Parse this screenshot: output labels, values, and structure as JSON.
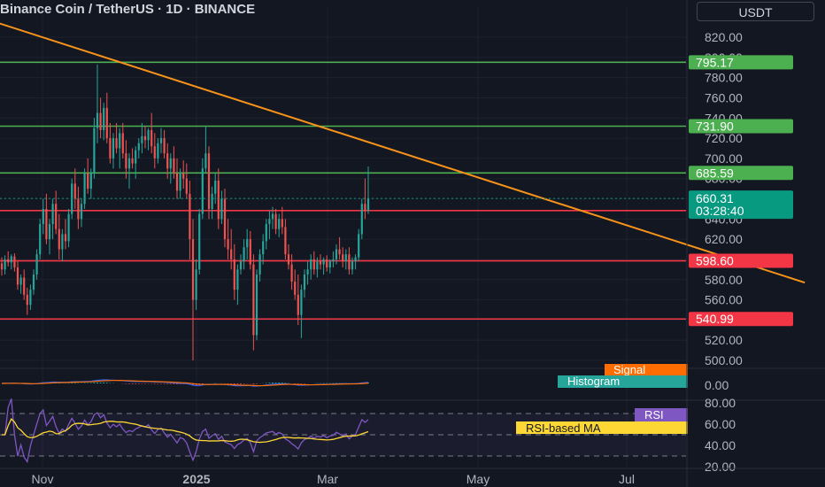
{
  "title": "Binance Coin / TetherUS · 1D · BINANCE",
  "currency_button": "USDT",
  "colors": {
    "background": "#131722",
    "bull": "#26a69a",
    "bear": "#ef5350",
    "support_resistance_red": "#f23645",
    "resistance_green": "#4caf50",
    "trendline": "#f7931a",
    "macd_line": "#2962ff",
    "macd_signal": "#ff6d00",
    "rsi_line": "#7e57c2",
    "rsi_ma": "#fdd835",
    "current_price": "#089981"
  },
  "chart_data": [
    {
      "type": "candlestick",
      "name": "price",
      "y_axis_ticks": [
        "820.00",
        "800.00",
        "780.00",
        "760.00",
        "740.00",
        "720.00",
        "700.00",
        "680.00",
        "660.00",
        "640.00",
        "620.00",
        "600.00",
        "580.00",
        "560.00",
        "540.00",
        "520.00",
        "500.00"
      ],
      "ylim": [
        495,
        830
      ],
      "x_axis_labels": [
        "Nov",
        "2025",
        "Mar",
        "May",
        "Jul"
      ],
      "horizontal_levels": [
        {
          "value": 795.17,
          "label": "795.17",
          "color": "green"
        },
        {
          "value": 731.9,
          "label": "731.90",
          "color": "green"
        },
        {
          "value": 685.59,
          "label": "685.59",
          "color": "green"
        },
        {
          "value": 648.31,
          "label": "648.31",
          "color": "red"
        },
        {
          "value": 598.6,
          "label": "598.60",
          "color": "red"
        },
        {
          "value": 540.99,
          "label": "540.99",
          "color": "red"
        }
      ],
      "trendline": {
        "start": {
          "bar": -5,
          "price": 838
        },
        "end": {
          "bar": 252,
          "price": 577
        }
      },
      "current_price": {
        "value": 660.31,
        "label": "660.31",
        "countdown": "03:28:40"
      },
      "candles": [
        [
          596,
          602,
          584,
          590
        ],
        [
          590,
          604,
          585,
          600
        ],
        [
          600,
          608,
          593,
          597
        ],
        [
          597,
          605,
          590,
          603
        ],
        [
          603,
          606,
          588,
          592
        ],
        [
          592,
          598,
          570,
          575
        ],
        [
          575,
          585,
          566,
          582
        ],
        [
          582,
          590,
          560,
          565
        ],
        [
          565,
          572,
          545,
          555
        ],
        [
          555,
          575,
          550,
          570
        ],
        [
          570,
          590,
          565,
          585
        ],
        [
          585,
          610,
          580,
          605
        ],
        [
          605,
          640,
          600,
          635
        ],
        [
          635,
          660,
          625,
          650
        ],
        [
          650,
          665,
          615,
          620
        ],
        [
          620,
          640,
          605,
          635
        ],
        [
          635,
          660,
          620,
          655
        ],
        [
          655,
          668,
          625,
          630
        ],
        [
          630,
          645,
          600,
          610
        ],
        [
          610,
          630,
          598,
          625
        ],
        [
          625,
          640,
          610,
          618
        ],
        [
          618,
          650,
          612,
          645
        ],
        [
          645,
          680,
          640,
          675
        ],
        [
          675,
          690,
          650,
          660
        ],
        [
          660,
          672,
          630,
          640
        ],
        [
          640,
          660,
          632,
          655
        ],
        [
          655,
          690,
          650,
          685
        ],
        [
          685,
          700,
          665,
          670
        ],
        [
          670,
          690,
          660,
          685
        ],
        [
          685,
          740,
          680,
          730
        ],
        [
          730,
          793,
          715,
          745
        ],
        [
          745,
          760,
          720,
          728
        ],
        [
          728,
          755,
          718,
          750
        ],
        [
          750,
          765,
          715,
          720
        ],
        [
          720,
          735,
          695,
          700
        ],
        [
          700,
          725,
          690,
          720
        ],
        [
          720,
          735,
          705,
          710
        ],
        [
          710,
          730,
          690,
          725
        ],
        [
          725,
          735,
          700,
          705
        ],
        [
          705,
          718,
          680,
          690
        ],
        [
          690,
          705,
          670,
          700
        ],
        [
          700,
          710,
          690,
          695
        ],
        [
          695,
          712,
          680,
          708
        ],
        [
          708,
          720,
          700,
          715
        ],
        [
          715,
          735,
          705,
          722
        ],
        [
          722,
          732,
          710,
          718
        ],
        [
          718,
          730,
          708,
          728
        ],
        [
          728,
          745,
          705,
          712
        ],
        [
          712,
          725,
          690,
          700
        ],
        [
          700,
          720,
          695,
          715
        ],
        [
          715,
          730,
          705,
          720
        ],
        [
          720,
          728,
          700,
          705
        ],
        [
          705,
          715,
          680,
          690
        ],
        [
          690,
          705,
          675,
          700
        ],
        [
          700,
          712,
          680,
          685
        ],
        [
          685,
          700,
          660,
          668
        ],
        [
          668,
          690,
          660,
          685
        ],
        [
          685,
          698,
          670,
          680
        ],
        [
          680,
          695,
          660,
          665
        ],
        [
          665,
          678,
          600,
          620
        ],
        [
          620,
          640,
          500,
          560
        ],
        [
          560,
          600,
          550,
          590
        ],
        [
          590,
          650,
          585,
          645
        ],
        [
          645,
          700,
          640,
          690
        ],
        [
          690,
          732,
          685,
          705
        ],
        [
          705,
          712,
          640,
          650
        ],
        [
          650,
          672,
          640,
          665
        ],
        [
          665,
          685,
          655,
          678
        ],
        [
          678,
          690,
          630,
          640
        ],
        [
          640,
          668,
          635,
          660
        ],
        [
          660,
          670,
          612,
          620
        ],
        [
          620,
          640,
          600,
          610
        ],
        [
          610,
          630,
          590,
          600
        ],
        [
          600,
          615,
          560,
          570
        ],
        [
          570,
          595,
          555,
          590
        ],
        [
          590,
          605,
          585,
          598
        ],
        [
          598,
          620,
          590,
          612
        ],
        [
          612,
          630,
          600,
          620
        ],
        [
          620,
          628,
          590,
          595
        ],
        [
          595,
          605,
          510,
          525
        ],
        [
          525,
          590,
          520,
          585
        ],
        [
          585,
          610,
          578,
          605
        ],
        [
          605,
          625,
          595,
          618
        ],
        [
          618,
          640,
          610,
          635
        ],
        [
          635,
          648,
          620,
          640
        ],
        [
          640,
          652,
          630,
          645
        ],
        [
          645,
          650,
          625,
          630
        ],
        [
          630,
          645,
          622,
          640
        ],
        [
          640,
          652,
          625,
          632
        ],
        [
          632,
          640,
          600,
          605
        ],
        [
          605,
          615,
          590,
          595
        ],
        [
          595,
          605,
          570,
          578
        ],
        [
          578,
          590,
          560,
          565
        ],
        [
          565,
          585,
          535,
          545
        ],
        [
          545,
          575,
          522,
          570
        ],
        [
          570,
          590,
          562,
          585
        ],
        [
          585,
          598,
          575,
          590
        ],
        [
          590,
          605,
          580,
          600
        ],
        [
          600,
          608,
          585,
          590
        ],
        [
          590,
          602,
          582,
          598
        ],
        [
          598,
          605,
          590,
          595
        ],
        [
          595,
          602,
          585,
          600
        ],
        [
          600,
          604,
          588,
          592
        ],
        [
          592,
          600,
          586,
          598
        ],
        [
          598,
          608,
          592,
          600
        ],
        [
          600,
          615,
          595,
          610
        ],
        [
          610,
          622,
          600,
          605
        ],
        [
          605,
          612,
          592,
          598
        ],
        [
          598,
          610,
          590,
          605
        ],
        [
          605,
          612,
          585,
          590
        ],
        [
          590,
          602,
          585,
          598
        ],
        [
          598,
          605,
          590,
          602
        ],
        [
          602,
          630,
          598,
          625
        ],
        [
          625,
          660,
          620,
          655
        ],
        [
          655,
          680,
          640,
          648
        ],
        [
          648,
          692,
          645,
          660
        ]
      ]
    },
    {
      "type": "macd",
      "series": [
        {
          "name": "Signal",
          "color": "#ff6d00"
        },
        {
          "name": "Histogram",
          "color": "#26a69a"
        }
      ],
      "y_axis_ticks": [
        "0.00"
      ]
    },
    {
      "type": "line",
      "name": "RSI",
      "series": [
        {
          "name": "RSI",
          "color": "#7e57c2"
        },
        {
          "name": "RSI-based MA",
          "color": "#fdd835"
        }
      ],
      "y_axis_ticks": [
        "80.00",
        "60.00",
        "40.00",
        "20.00"
      ],
      "ylim": [
        20,
        80
      ],
      "bands": [
        70,
        50,
        30
      ]
    }
  ]
}
